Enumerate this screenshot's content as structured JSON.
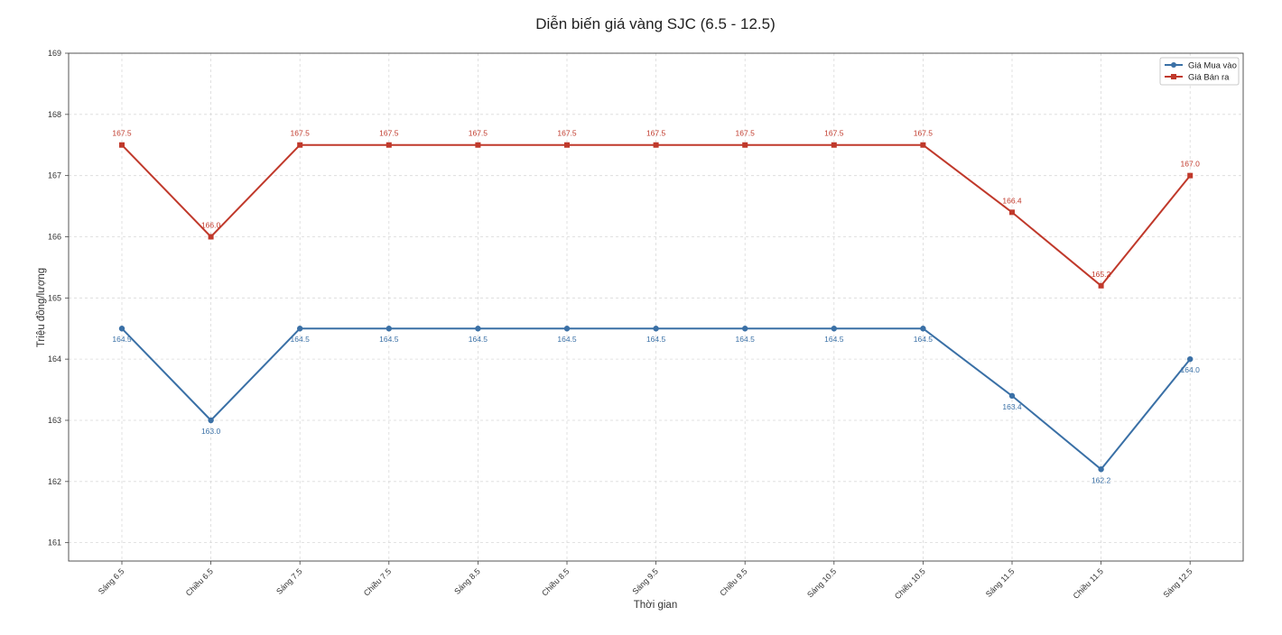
{
  "chart_data": {
    "type": "line",
    "title": "Diễn biến giá vàng SJC (6.5 - 12.5)",
    "xlabel": "Thời gian",
    "ylabel": "Triệu đồng/lượng",
    "ylim": [
      160.7,
      169
    ],
    "yticks": [
      "161",
      "162",
      "163",
      "164",
      "165",
      "166",
      "167",
      "168",
      "169"
    ],
    "grid": true,
    "legend_position": "top-right",
    "categories": [
      "Sáng 6.5",
      "Chiều 6.5",
      "Sáng 7.5",
      "Chiều 7.5",
      "Sáng 8.5",
      "Chiều 8.5",
      "Sáng 9.5",
      "Chiều 9.5",
      "Sáng 10.5",
      "Chiều 10.5",
      "Sáng 11.5",
      "Chiều 11.5",
      "Sáng 12.5"
    ],
    "series": [
      {
        "name": "Giá Mua vào",
        "color": "#3a70a6",
        "marker": "circle",
        "values": [
          164.5,
          163.0,
          164.5,
          164.5,
          164.5,
          164.5,
          164.5,
          164.5,
          164.5,
          164.5,
          163.4,
          162.2,
          164.0
        ],
        "labels": [
          "164.5",
          "163.0",
          "164.5",
          "164.5",
          "164.5",
          "164.5",
          "164.5",
          "164.5",
          "164.5",
          "164.5",
          "163.4",
          "162.2",
          "164.0"
        ],
        "label_side": "below"
      },
      {
        "name": "Giá Bán ra",
        "color": "#c0392b",
        "marker": "square",
        "values": [
          167.5,
          166.0,
          167.5,
          167.5,
          167.5,
          167.5,
          167.5,
          167.5,
          167.5,
          167.5,
          166.4,
          165.2,
          167.0
        ],
        "labels": [
          "167.5",
          "166.0",
          "167.5",
          "167.5",
          "167.5",
          "167.5",
          "167.5",
          "167.5",
          "167.5",
          "167.5",
          "166.4",
          "165.2",
          "167.0"
        ],
        "label_side": "above"
      }
    ]
  }
}
